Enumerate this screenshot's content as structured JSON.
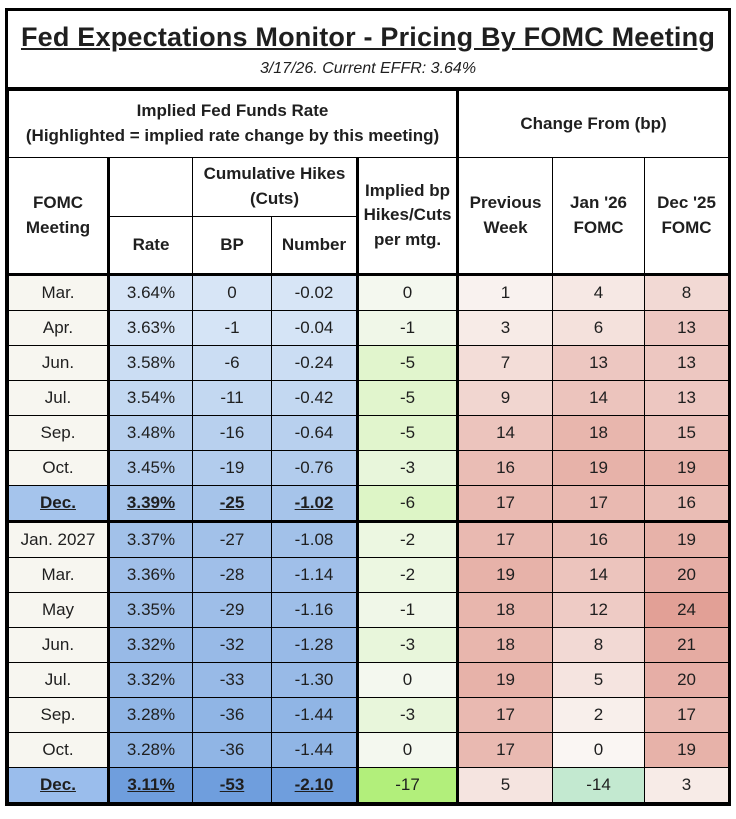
{
  "header": {
    "title": "Fed Expectations Monitor - Pricing By FOMC Meeting",
    "subtitle": "3/17/26. Current EFFR: 3.64%"
  },
  "chart_data": {
    "type": "table",
    "title": "Fed Expectations Monitor - Pricing By FOMC Meeting",
    "group_headers": {
      "implied_title": "Implied Fed Funds Rate",
      "implied_note": "(Highlighted = implied rate change by this meeting)",
      "change_from": "Change From (bp)"
    },
    "col_headers": {
      "meeting": "FOMC Meeting",
      "rate": "Rate",
      "cumulative": "Cumulative Hikes (Cuts)",
      "bp": "BP",
      "number": "Number",
      "implied": "Implied bp Hikes/Cuts per mtg.",
      "prev_week": "Previous Week",
      "jan26": "Jan '26 FOMC",
      "dec25": "Dec '25 FOMC"
    },
    "rows": [
      {
        "meeting": "Mar.",
        "rate": "3.64%",
        "bp": "0",
        "number": "-0.02",
        "implied": 0,
        "prev_week": 1,
        "jan26": 4,
        "dec25": 8,
        "highlighted": false
      },
      {
        "meeting": "Apr.",
        "rate": "3.63%",
        "bp": "-1",
        "number": "-0.04",
        "implied": -1,
        "prev_week": 3,
        "jan26": 6,
        "dec25": 13,
        "highlighted": false
      },
      {
        "meeting": "Jun.",
        "rate": "3.58%",
        "bp": "-6",
        "number": "-0.24",
        "implied": -5,
        "prev_week": 7,
        "jan26": 13,
        "dec25": 13,
        "highlighted": false
      },
      {
        "meeting": "Jul.",
        "rate": "3.54%",
        "bp": "-11",
        "number": "-0.42",
        "implied": -5,
        "prev_week": 9,
        "jan26": 14,
        "dec25": 13,
        "highlighted": false
      },
      {
        "meeting": "Sep.",
        "rate": "3.48%",
        "bp": "-16",
        "number": "-0.64",
        "implied": -5,
        "prev_week": 14,
        "jan26": 18,
        "dec25": 15,
        "highlighted": false
      },
      {
        "meeting": "Oct.",
        "rate": "3.45%",
        "bp": "-19",
        "number": "-0.76",
        "implied": -3,
        "prev_week": 16,
        "jan26": 19,
        "dec25": 19,
        "highlighted": false
      },
      {
        "meeting": "Dec.",
        "rate": "3.39%",
        "bp": "-25",
        "number": "-1.02",
        "implied": -6,
        "prev_week": 17,
        "jan26": 17,
        "dec25": 16,
        "highlighted": true,
        "meeting_bg": "#a5c4ec",
        "section_end": true
      },
      {
        "meeting": "Jan. 2027",
        "rate": "3.37%",
        "bp": "-27",
        "number": "-1.08",
        "implied": -2,
        "prev_week": 17,
        "jan26": 16,
        "dec25": 19,
        "highlighted": false
      },
      {
        "meeting": "Mar.",
        "rate": "3.36%",
        "bp": "-28",
        "number": "-1.14",
        "implied": -2,
        "prev_week": 19,
        "jan26": 14,
        "dec25": 20,
        "highlighted": false
      },
      {
        "meeting": "May",
        "rate": "3.35%",
        "bp": "-29",
        "number": "-1.16",
        "implied": -1,
        "prev_week": 18,
        "jan26": 12,
        "dec25": 24,
        "highlighted": false
      },
      {
        "meeting": "Jun.",
        "rate": "3.32%",
        "bp": "-32",
        "number": "-1.28",
        "implied": -3,
        "prev_week": 18,
        "jan26": 8,
        "dec25": 21,
        "highlighted": false
      },
      {
        "meeting": "Jul.",
        "rate": "3.32%",
        "bp": "-33",
        "number": "-1.30",
        "implied": 0,
        "prev_week": 19,
        "jan26": 5,
        "dec25": 20,
        "highlighted": false
      },
      {
        "meeting": "Sep.",
        "rate": "3.28%",
        "bp": "-36",
        "number": "-1.44",
        "implied": -3,
        "prev_week": 17,
        "jan26": 2,
        "dec25": 17,
        "highlighted": false
      },
      {
        "meeting": "Oct.",
        "rate": "3.28%",
        "bp": "-36",
        "number": "-1.44",
        "implied": 0,
        "prev_week": 17,
        "jan26": 0,
        "dec25": 19,
        "highlighted": false
      },
      {
        "meeting": "Dec.",
        "rate": "3.11%",
        "bp": "-53",
        "number": "-2.10",
        "implied": -17,
        "prev_week": 5,
        "jan26": -14,
        "dec25": 3,
        "highlighted": true,
        "meeting_bg": "#9abdec"
      }
    ]
  },
  "colors": {
    "border": "#000000",
    "text": "#1f1f1f",
    "meeting_bg": "#f7f6f0",
    "blue_light": "#d7e5f6",
    "blue_dark": "#6f9edd",
    "implied_zero": "#f4f8ef",
    "implied_green_max": "#b2ef7b",
    "change_zero": "#faf6f3",
    "change_red_max": "#e2a096",
    "change_green_max": "#c3e9d0"
  }
}
